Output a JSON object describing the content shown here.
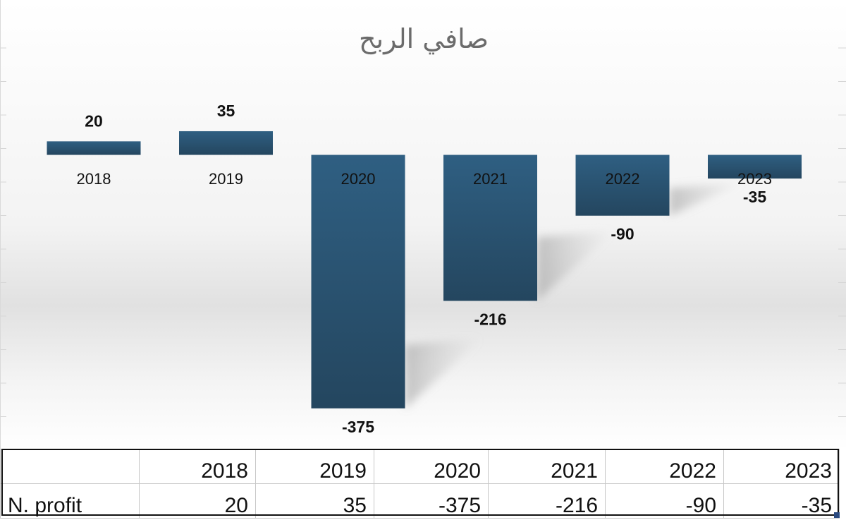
{
  "chart_data": {
    "type": "bar",
    "title": "صافي الربح",
    "categories": [
      "2018",
      "2019",
      "2020",
      "2021",
      "2022",
      "2023"
    ],
    "values": [
      20,
      35,
      -375,
      -216,
      -90,
      -35
    ],
    "series": [
      {
        "name": "N. profit",
        "values": [
          20,
          35,
          -375,
          -216,
          -90,
          -35
        ]
      }
    ],
    "value_labels": [
      "20",
      "35",
      "-375",
      "-216",
      "-90",
      "-35"
    ],
    "xlabel": "",
    "ylabel": "",
    "ylim": [
      -375,
      35
    ],
    "grid": false,
    "legend": "none",
    "bar_color": "#2b5577"
  },
  "table": {
    "header": [
      "",
      "2018",
      "2019",
      "2020",
      "2021",
      "2022",
      "2023"
    ],
    "row_label": "N. profit",
    "row_values": [
      "20",
      "35",
      "-375",
      "-216",
      "-90",
      "-35"
    ]
  },
  "colors": {
    "bar": "#2b5577",
    "bar_dark": "#23455f",
    "title": "#6b6b6b"
  }
}
